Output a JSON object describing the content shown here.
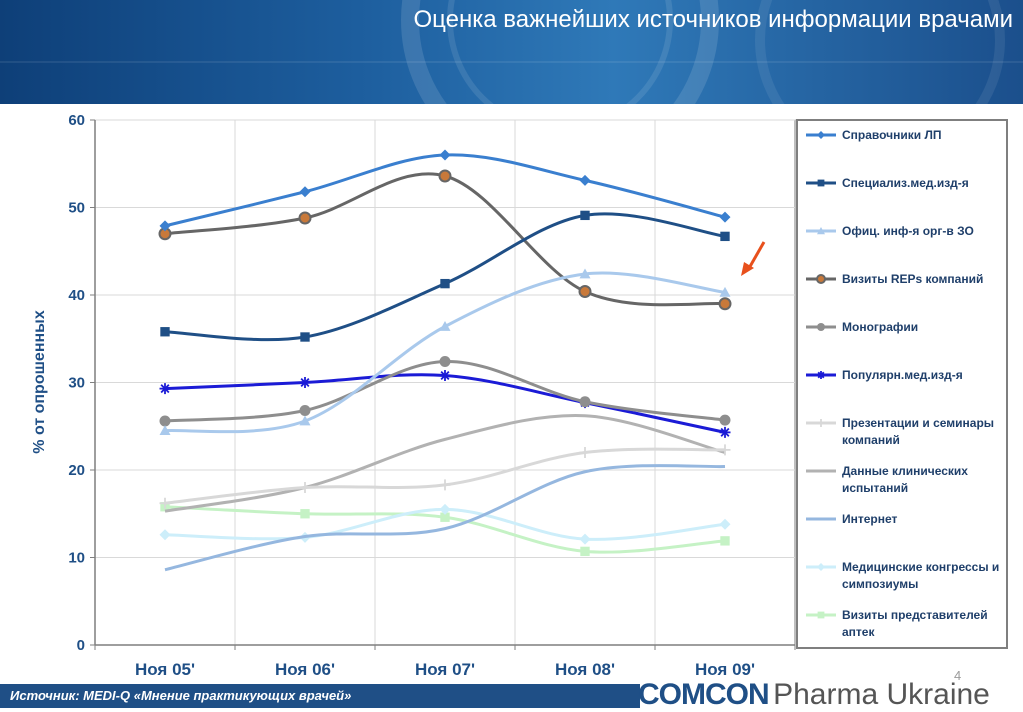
{
  "header": {
    "title": "Оценка важнейших источников информации врачами"
  },
  "footer": {
    "source": "Источник: MEDI-Q «Мнение практикующих врачей»",
    "page_number": "4"
  },
  "brand": {
    "name": "COMCON",
    "suffix": "Pharma Ukraine"
  },
  "colors": {
    "header_bg": "#1f5d9c",
    "footer_bar": "#1f4f86",
    "arrow": "#e8501c",
    "brand": "#1f4f86"
  },
  "chart_data": {
    "type": "line",
    "categories": [
      "Ноя 05'",
      "Ноя 06'",
      "Ноя 07'",
      "Ноя 08'",
      "Ноя 09'"
    ],
    "ylabel": "% от опрошенных",
    "ylim": [
      0,
      60
    ],
    "yticks": [
      0,
      10,
      20,
      30,
      40,
      50,
      60
    ],
    "grid": true,
    "legend_position": "right",
    "series": [
      {
        "name": "Справочники ЛП",
        "values": [
          47.9,
          51.8,
          56.0,
          53.1,
          48.9
        ],
        "color": "#3a7fcf",
        "marker": "diamond"
      },
      {
        "name": "Специализ.мед.изд-я",
        "values": [
          35.8,
          35.2,
          41.3,
          49.1,
          46.7
        ],
        "color": "#1f4f86",
        "marker": "square"
      },
      {
        "name": "Офиц. инф-я орг-в ЗО",
        "values": [
          24.5,
          25.6,
          36.4,
          42.4,
          40.3
        ],
        "color": "#a9c9ec",
        "marker": "triangle"
      },
      {
        "name": "Визиты REPs компаний",
        "values": [
          47.0,
          48.8,
          53.6,
          40.4,
          39.0
        ],
        "color": "#666666",
        "marker": "circle-orange"
      },
      {
        "name": "Монографии",
        "values": [
          25.6,
          26.8,
          32.4,
          27.8,
          25.7
        ],
        "color": "#8e8e8e",
        "marker": "circle"
      },
      {
        "name": "Популярн.мед.изд-я",
        "values": [
          29.3,
          30.0,
          30.8,
          27.7,
          24.3
        ],
        "color": "#1b1bd6",
        "marker": "star"
      },
      {
        "name": "Презентации и семинары компаний",
        "values": [
          16.2,
          18.0,
          18.3,
          22.0,
          22.3
        ],
        "color": "#d8d8d8",
        "marker": "plus"
      },
      {
        "name": "Данные клинических испытаний",
        "values": [
          15.3,
          18.0,
          23.5,
          26.2,
          22.0
        ],
        "color": "#b2b2b2",
        "marker": "none"
      },
      {
        "name": "Интернет",
        "values": [
          8.6,
          12.4,
          13.3,
          19.8,
          20.4
        ],
        "color": "#95b7df",
        "marker": "none"
      },
      {
        "name": "Медицинские конгрессы и симпозиумы",
        "values": [
          12.6,
          12.3,
          15.5,
          12.1,
          13.8
        ],
        "color": "#cdeefa",
        "marker": "diamond"
      },
      {
        "name": "Визиты представителей аптек",
        "values": [
          15.8,
          15.0,
          14.6,
          10.7,
          11.9
        ],
        "color": "#c5f2c5",
        "marker": "square"
      }
    ]
  }
}
